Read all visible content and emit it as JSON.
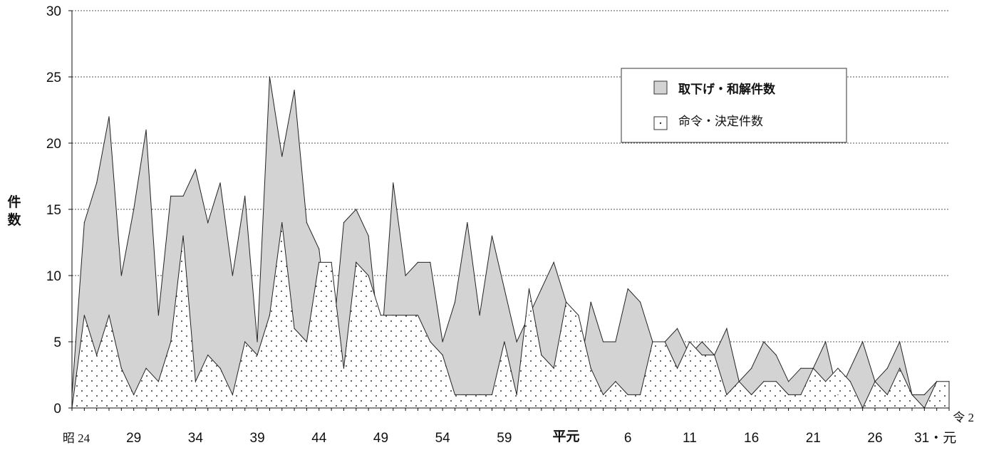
{
  "chart_data": {
    "type": "area",
    "ylabel": "件数",
    "ylim": [
      0,
      30
    ],
    "yticks": [
      0,
      5,
      10,
      15,
      20,
      25,
      30
    ],
    "x_tick_labels": [
      {
        "index": 0,
        "label": "昭 24",
        "style": "serif"
      },
      {
        "index": 5,
        "label": "29"
      },
      {
        "index": 10,
        "label": "34"
      },
      {
        "index": 15,
        "label": "39"
      },
      {
        "index": 20,
        "label": "44"
      },
      {
        "index": 25,
        "label": "49"
      },
      {
        "index": 30,
        "label": "54"
      },
      {
        "index": 35,
        "label": "59"
      },
      {
        "index": 40,
        "label": "平元",
        "style": "small-bold"
      },
      {
        "index": 45,
        "label": "6"
      },
      {
        "index": 50,
        "label": "11"
      },
      {
        "index": 55,
        "label": "16"
      },
      {
        "index": 60,
        "label": "21"
      },
      {
        "index": 65,
        "label": "26"
      },
      {
        "index": 70,
        "label": "31・元",
        "style": "mixed"
      },
      {
        "index": 71,
        "label": "令 2",
        "style": "serif-raised"
      }
    ],
    "legend": {
      "placement": "top-right"
    },
    "series": [
      {
        "name": "取下げ・和解件数",
        "fill": "#d3d3d3",
        "values": [
          1,
          14,
          17,
          22,
          10,
          15,
          21,
          7,
          16,
          16,
          18,
          14,
          17,
          10,
          16,
          5,
          25,
          19,
          24,
          14,
          12,
          4,
          14,
          15,
          13,
          4,
          17,
          10,
          11,
          11,
          5,
          8,
          14,
          7,
          13,
          9,
          5,
          7,
          9,
          11,
          8,
          2,
          8,
          5,
          5,
          9,
          8,
          5,
          5,
          6,
          4,
          5,
          4,
          6,
          2,
          3,
          5,
          4,
          2,
          3,
          3,
          5,
          1,
          3,
          5,
          2,
          3,
          5,
          1,
          1,
          2,
          1
        ]
      },
      {
        "name": "命令・決定件数",
        "fill": "dots",
        "values": [
          0,
          7,
          4,
          7,
          3,
          1,
          3,
          2,
          5,
          13,
          2,
          4,
          3,
          1,
          5,
          4,
          7,
          14,
          6,
          5,
          11,
          11,
          3,
          11,
          10,
          7,
          7,
          7,
          7,
          5,
          4,
          1,
          1,
          1,
          1,
          5,
          1,
          9,
          4,
          3,
          8,
          7,
          3,
          1,
          2,
          1,
          1,
          5,
          5,
          3,
          5,
          4,
          4,
          1,
          2,
          1,
          2,
          2,
          1,
          1,
          3,
          2,
          3,
          2,
          0,
          2,
          1,
          3,
          1,
          0,
          2,
          2
        ]
      }
    ]
  }
}
